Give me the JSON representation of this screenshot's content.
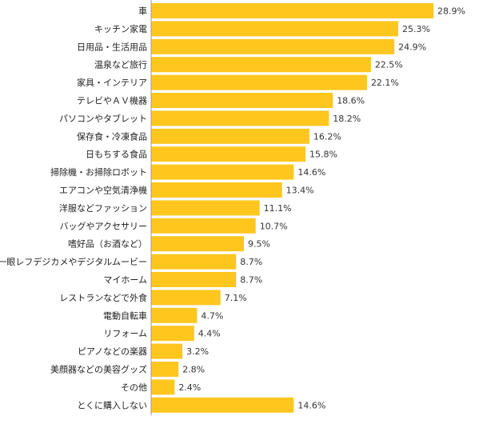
{
  "chart_data": {
    "type": "bar",
    "orientation": "horizontal",
    "categories": [
      "車",
      "キッチン家電",
      "日用品・生活用品",
      "温泉など旅行",
      "家具・インテリア",
      "テレビやＡＶ機器",
      "パソコンやタブレット",
      "保存食・冷凍食品",
      "日もちする食品",
      "掃除機・お掃除ロボット",
      "エアコンや空気清浄機",
      "洋服などファッション",
      "バッグやアクセサリー",
      "嗜好品（お酒など）",
      "一眼レフデジカメやデジタルムービー",
      "マイホーム",
      "レストランなどで外食",
      "電動自転車",
      "リフォーム",
      "ピアノなどの楽器",
      "美顔器などの美容グッズ",
      "その他",
      "とくに購入しない"
    ],
    "values": [
      28.9,
      25.3,
      24.9,
      22.5,
      22.1,
      18.6,
      18.2,
      16.2,
      15.8,
      14.6,
      13.4,
      11.1,
      10.7,
      9.5,
      8.7,
      8.7,
      7.1,
      4.7,
      4.4,
      3.2,
      2.8,
      2.4,
      14.6
    ],
    "value_labels": [
      "28.9%",
      "25.3%",
      "24.9%",
      "22.5%",
      "22.1%",
      "18.6%",
      "18.2%",
      "16.2%",
      "15.8%",
      "14.6%",
      "13.4%",
      "11.1%",
      "10.7%",
      "9.5%",
      "8.7%",
      "8.7%",
      "7.1%",
      "4.7%",
      "4.4%",
      "3.2%",
      "2.8%",
      "2.4%",
      "14.6%"
    ],
    "unit": "%",
    "xlim": [
      0,
      30
    ],
    "title": "",
    "xlabel": "",
    "ylabel": "",
    "grid": false,
    "legend": "none",
    "colors": {
      "bar": "#FFC61E",
      "axis": "#999999"
    }
  }
}
